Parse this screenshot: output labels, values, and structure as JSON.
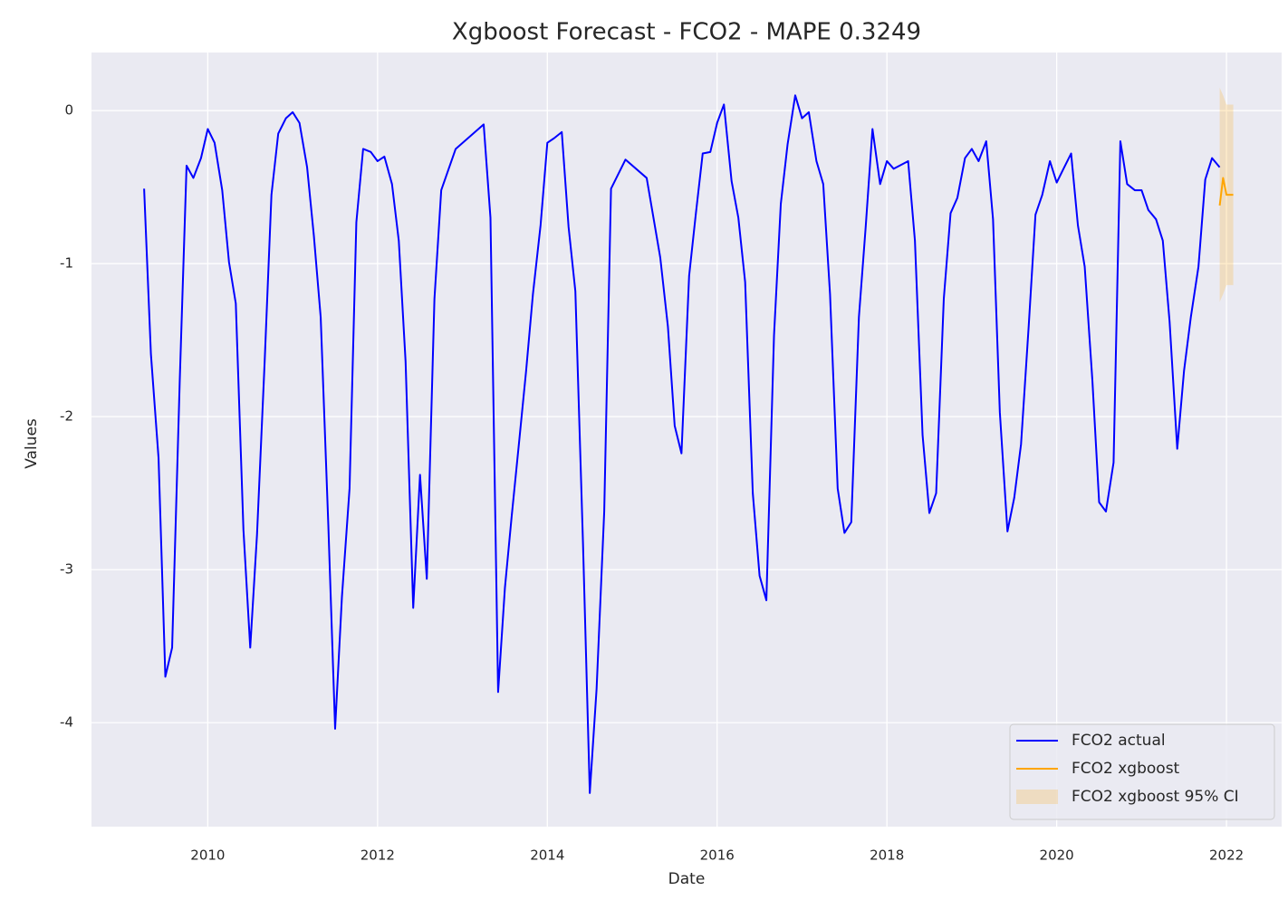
{
  "chart_data": {
    "type": "line",
    "title": "Xgboost Forecast - FCO2 - MAPE 0.3249",
    "xlabel": "Date",
    "ylabel": "Values",
    "xlim": [
      2008.63,
      2022.65
    ],
    "xticks": [
      2010,
      2012,
      2014,
      2016,
      2018,
      2020,
      2022
    ],
    "ylim": [
      -4.68,
      0.38
    ],
    "yticks": [
      0,
      -1,
      -2,
      -3,
      -4
    ],
    "grid": true,
    "legend": "lower right",
    "series": [
      {
        "name": "FCO2 actual",
        "color": "#0000ff",
        "x": [
          2009.25,
          2009.33,
          2009.42,
          2009.5,
          2009.58,
          2009.67,
          2009.75,
          2009.83,
          2009.92,
          2010,
          2010.08,
          2010.17,
          2010.25,
          2010.33,
          2010.42,
          2010.5,
          2010.58,
          2010.67,
          2010.75,
          2010.83,
          2010.92,
          2011,
          2011.08,
          2011.17,
          2011.25,
          2011.33,
          2011.42,
          2011.5,
          2011.58,
          2011.67,
          2011.75,
          2011.83,
          2011.92,
          2012,
          2012.08,
          2012.17,
          2012.25,
          2012.33,
          2012.42,
          2012.5,
          2012.58,
          2012.67,
          2012.75,
          2012.92,
          2013.25,
          2013.33,
          2013.42,
          2013.5,
          2013.58,
          2013.67,
          2013.75,
          2013.83,
          2013.92,
          2014,
          2014.08,
          2014.17,
          2014.25,
          2014.33,
          2014.42,
          2014.5,
          2014.58,
          2014.67,
          2014.75,
          2014.92,
          2015.17,
          2015.33,
          2015.42,
          2015.5,
          2015.58,
          2015.67,
          2015.75,
          2015.83,
          2015.92,
          2016,
          2016.08,
          2016.17,
          2016.25,
          2016.33,
          2016.42,
          2016.5,
          2016.58,
          2016.67,
          2016.75,
          2016.83,
          2016.92,
          2017,
          2017.08,
          2017.17,
          2017.25,
          2017.33,
          2017.42,
          2017.5,
          2017.58,
          2017.67,
          2017.75,
          2017.83,
          2017.92,
          2018,
          2018.08,
          2018.25,
          2018.33,
          2018.42,
          2018.5,
          2018.58,
          2018.67,
          2018.75,
          2018.83,
          2018.92,
          2019,
          2019.08,
          2019.17,
          2019.25,
          2019.33,
          2019.42,
          2019.5,
          2019.58,
          2019.67,
          2019.75,
          2019.83,
          2019.92,
          2020,
          2020.08,
          2020.17,
          2020.25,
          2020.33,
          2020.42,
          2020.5,
          2020.58,
          2020.67,
          2020.75,
          2020.83,
          2020.92,
          2021,
          2021.08,
          2021.17,
          2021.25,
          2021.33,
          2021.42,
          2021.5,
          2021.58,
          2021.67,
          2021.75,
          2021.83,
          2021.92
        ],
        "values": [
          -0.51,
          -1.59,
          -2.27,
          -3.7,
          -3.51,
          -1.76,
          -0.36,
          -0.44,
          -0.31,
          -0.12,
          -0.21,
          -0.52,
          -0.99,
          -1.26,
          -2.74,
          -3.51,
          -2.77,
          -1.64,
          -0.55,
          -0.15,
          -0.05,
          -0.01,
          -0.08,
          -0.37,
          -0.82,
          -1.35,
          -2.71,
          -4.04,
          -3.18,
          -2.47,
          -0.73,
          -0.25,
          -0.27,
          -0.33,
          -0.3,
          -0.48,
          -0.85,
          -1.64,
          -3.25,
          -2.38,
          -3.06,
          -1.23,
          -0.52,
          -0.25,
          -0.09,
          -0.7,
          -3.8,
          -3.12,
          -2.65,
          -2.15,
          -1.7,
          -1.2,
          -0.75,
          -0.21,
          -0.18,
          -0.14,
          -0.76,
          -1.18,
          -2.83,
          -4.46,
          -3.78,
          -2.62,
          -0.51,
          -0.32,
          -0.44,
          -0.96,
          -1.41,
          -2.06,
          -2.24,
          -1.08,
          -0.67,
          -0.28,
          -0.27,
          -0.08,
          0.04,
          -0.46,
          -0.7,
          -1.12,
          -2.5,
          -3.04,
          -3.2,
          -1.47,
          -0.61,
          -0.22,
          0.1,
          -0.05,
          -0.01,
          -0.33,
          -0.48,
          -1.2,
          -2.47,
          -2.76,
          -2.69,
          -1.35,
          -0.76,
          -0.12,
          -0.48,
          -0.33,
          -0.38,
          -0.33,
          -0.85,
          -2.12,
          -2.63,
          -2.5,
          -1.23,
          -0.67,
          -0.57,
          -0.31,
          -0.25,
          -0.33,
          -0.2,
          -0.71,
          -1.97,
          -2.75,
          -2.53,
          -2.18,
          -1.41,
          -0.68,
          -0.55,
          -0.33,
          -0.47,
          -0.38,
          -0.28,
          -0.75,
          -1.02,
          -1.76,
          -2.56,
          -2.62,
          -2.3,
          -0.2,
          -0.48,
          -0.52,
          -0.52,
          -0.65,
          -0.71,
          -0.85,
          -1.38,
          -2.21,
          -1.7,
          -1.35,
          -1.02,
          -0.45,
          -0.31,
          -0.37
        ]
      },
      {
        "name": "FCO2 xgboost",
        "color": "#ffa500",
        "x": [
          2021.92,
          2021.96,
          2022.0,
          2022.08
        ],
        "values": [
          -0.62,
          -0.44,
          -0.55,
          -0.55
        ]
      },
      {
        "name": "FCO2 xgboost 95% CI",
        "color": "#ffa500",
        "alpha": 0.2,
        "x": [
          2021.92,
          2021.96,
          2022.0,
          2022.08
        ],
        "lower": [
          -1.25,
          -1.2,
          -1.14,
          -1.14
        ],
        "upper": [
          0.15,
          0.1,
          0.04,
          0.04
        ]
      }
    ]
  }
}
